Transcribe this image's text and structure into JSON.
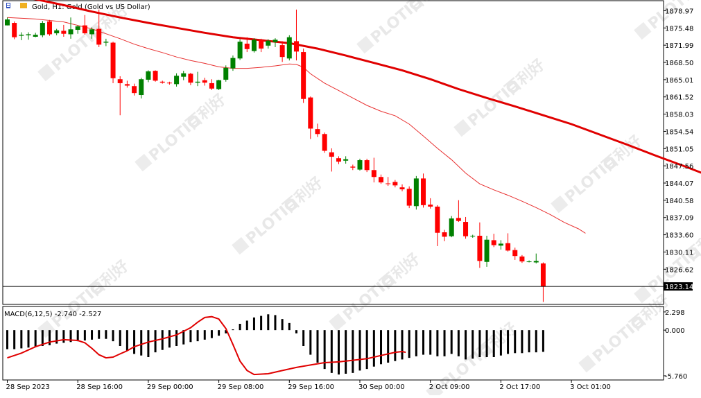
{
  "header": {
    "title": "Gold, H1:  Gold (Gold vs US Dollar)"
  },
  "watermark": {
    "brand": "PLOTIO",
    "cjk": "百利好"
  },
  "colors": {
    "bull": "#008000",
    "bear": "#ff0000",
    "ma_slow": "#e00000",
    "ma_fast": "#e83030",
    "macd_hist": "#000000",
    "macd_signal": "#e00000",
    "grid": "#000000"
  },
  "chart_data": [
    {
      "type": "candlestick",
      "symbol": "Gold",
      "timeframe": "H1",
      "ylim": [
        1819.5,
        1881.0
      ],
      "y_ticks": [
        "1878.97",
        "1875.48",
        "1871.99",
        "1868.50",
        "1865.01",
        "1861.52",
        "1858.03",
        "1854.54",
        "1851.05",
        "1847.56",
        "1844.07",
        "1840.58",
        "1837.09",
        "1833.60",
        "1830.11",
        "1826.62"
      ],
      "current_price": "1823.14",
      "x_labels": [
        "28 Sep 2023",
        "28 Sep 16:00",
        "29 Sep 00:00",
        "29 Sep 08:00",
        "29 Sep 16:00",
        "30 Sep 00:00",
        "2 Oct 09:00",
        "2 Oct 17:00",
        "3 Oct 01:00"
      ],
      "x_label_bars": [
        0,
        8,
        16,
        24,
        32,
        40,
        48,
        56,
        64
      ],
      "candles": [
        {
          "o": 1876.0,
          "h": 1877.6,
          "l": 1876.0,
          "c": 1877.2
        },
        {
          "o": 1876.5,
          "h": 1876.8,
          "l": 1873.2,
          "c": 1873.6
        },
        {
          "o": 1873.9,
          "h": 1874.6,
          "l": 1873.0,
          "c": 1874.1
        },
        {
          "o": 1874.0,
          "h": 1874.6,
          "l": 1873.1,
          "c": 1874.2
        },
        {
          "o": 1873.7,
          "h": 1874.5,
          "l": 1873.6,
          "c": 1874.1
        },
        {
          "o": 1874.0,
          "h": 1876.9,
          "l": 1873.6,
          "c": 1876.5
        },
        {
          "o": 1876.8,
          "h": 1877.1,
          "l": 1873.9,
          "c": 1874.2
        },
        {
          "o": 1874.4,
          "h": 1875.3,
          "l": 1874.0,
          "c": 1875.0
        },
        {
          "o": 1874.9,
          "h": 1876.1,
          "l": 1873.7,
          "c": 1874.3
        },
        {
          "o": 1874.2,
          "h": 1877.6,
          "l": 1873.3,
          "c": 1875.2
        },
        {
          "o": 1875.1,
          "h": 1876.0,
          "l": 1874.3,
          "c": 1875.8
        },
        {
          "o": 1876.0,
          "h": 1878.1,
          "l": 1874.1,
          "c": 1874.4
        },
        {
          "o": 1874.2,
          "h": 1875.6,
          "l": 1873.3,
          "c": 1875.2
        },
        {
          "o": 1875.3,
          "h": 1879.2,
          "l": 1871.6,
          "c": 1872.1
        },
        {
          "o": 1872.5,
          "h": 1873.3,
          "l": 1871.8,
          "c": 1872.7
        },
        {
          "o": 1872.5,
          "h": 1872.7,
          "l": 1864.3,
          "c": 1865.3
        },
        {
          "o": 1865.1,
          "h": 1865.7,
          "l": 1857.8,
          "c": 1864.3
        },
        {
          "o": 1864.1,
          "h": 1864.8,
          "l": 1863.4,
          "c": 1863.8
        },
        {
          "o": 1863.7,
          "h": 1864.2,
          "l": 1861.8,
          "c": 1862.3
        },
        {
          "o": 1861.9,
          "h": 1865.4,
          "l": 1861.2,
          "c": 1865.1
        },
        {
          "o": 1865.0,
          "h": 1866.9,
          "l": 1864.5,
          "c": 1866.7
        },
        {
          "o": 1866.8,
          "h": 1866.9,
          "l": 1864.6,
          "c": 1864.8
        },
        {
          "o": 1864.6,
          "h": 1864.8,
          "l": 1864.2,
          "c": 1864.4
        },
        {
          "o": 1864.4,
          "h": 1864.6,
          "l": 1864.0,
          "c": 1864.3
        },
        {
          "o": 1864.1,
          "h": 1866.3,
          "l": 1863.6,
          "c": 1865.8
        },
        {
          "o": 1865.6,
          "h": 1866.8,
          "l": 1864.9,
          "c": 1866.3
        },
        {
          "o": 1866.2,
          "h": 1866.4,
          "l": 1863.9,
          "c": 1864.4
        },
        {
          "o": 1864.4,
          "h": 1866.6,
          "l": 1863.7,
          "c": 1864.6
        },
        {
          "o": 1864.9,
          "h": 1865.4,
          "l": 1863.8,
          "c": 1864.4
        },
        {
          "o": 1864.3,
          "h": 1865.1,
          "l": 1862.9,
          "c": 1863.2
        },
        {
          "o": 1863.1,
          "h": 1865.0,
          "l": 1862.9,
          "c": 1864.9
        },
        {
          "o": 1865.0,
          "h": 1867.9,
          "l": 1864.6,
          "c": 1867.4
        },
        {
          "o": 1867.3,
          "h": 1869.9,
          "l": 1866.8,
          "c": 1869.4
        },
        {
          "o": 1869.3,
          "h": 1873.2,
          "l": 1869.0,
          "c": 1872.7
        },
        {
          "o": 1872.3,
          "h": 1873.6,
          "l": 1870.6,
          "c": 1871.2
        },
        {
          "o": 1870.8,
          "h": 1873.4,
          "l": 1870.5,
          "c": 1873.1
        },
        {
          "o": 1873.0,
          "h": 1873.3,
          "l": 1870.6,
          "c": 1871.3
        },
        {
          "o": 1871.9,
          "h": 1873.2,
          "l": 1871.3,
          "c": 1872.9
        },
        {
          "o": 1872.6,
          "h": 1873.4,
          "l": 1871.6,
          "c": 1873.1
        },
        {
          "o": 1872.0,
          "h": 1872.8,
          "l": 1868.6,
          "c": 1869.6
        },
        {
          "o": 1869.3,
          "h": 1874.0,
          "l": 1868.9,
          "c": 1873.6
        },
        {
          "o": 1872.8,
          "h": 1879.2,
          "l": 1868.9,
          "c": 1870.7
        },
        {
          "o": 1870.6,
          "h": 1871.3,
          "l": 1860.3,
          "c": 1861.1
        },
        {
          "o": 1861.4,
          "h": 1861.6,
          "l": 1853.0,
          "c": 1855.1
        },
        {
          "o": 1855.0,
          "h": 1856.1,
          "l": 1853.4,
          "c": 1854.0
        },
        {
          "o": 1854.0,
          "h": 1854.3,
          "l": 1850.2,
          "c": 1850.6
        },
        {
          "o": 1850.3,
          "h": 1851.1,
          "l": 1846.4,
          "c": 1849.4
        },
        {
          "o": 1849.1,
          "h": 1849.5,
          "l": 1847.9,
          "c": 1848.4
        },
        {
          "o": 1848.6,
          "h": 1849.5,
          "l": 1848.0,
          "c": 1848.9
        },
        {
          "o": 1847.4,
          "h": 1847.8,
          "l": 1846.7,
          "c": 1847.2
        },
        {
          "o": 1846.8,
          "h": 1849.0,
          "l": 1846.6,
          "c": 1848.7
        },
        {
          "o": 1848.7,
          "h": 1849.0,
          "l": 1846.3,
          "c": 1846.7
        },
        {
          "o": 1846.7,
          "h": 1849.2,
          "l": 1844.2,
          "c": 1845.3
        },
        {
          "o": 1845.3,
          "h": 1845.8,
          "l": 1843.9,
          "c": 1844.2
        },
        {
          "o": 1844.0,
          "h": 1845.3,
          "l": 1843.5,
          "c": 1843.9
        },
        {
          "o": 1844.3,
          "h": 1844.7,
          "l": 1843.2,
          "c": 1843.6
        },
        {
          "o": 1843.2,
          "h": 1843.8,
          "l": 1842.4,
          "c": 1842.8
        },
        {
          "o": 1842.9,
          "h": 1843.4,
          "l": 1839.0,
          "c": 1839.5
        },
        {
          "o": 1839.4,
          "h": 1845.5,
          "l": 1838.7,
          "c": 1845.0
        },
        {
          "o": 1845.0,
          "h": 1846.0,
          "l": 1839.1,
          "c": 1839.6
        },
        {
          "o": 1839.7,
          "h": 1841.0,
          "l": 1838.9,
          "c": 1839.3
        },
        {
          "o": 1839.3,
          "h": 1839.6,
          "l": 1831.3,
          "c": 1834.0
        },
        {
          "o": 1834.1,
          "h": 1834.6,
          "l": 1832.3,
          "c": 1833.2
        },
        {
          "o": 1833.3,
          "h": 1837.4,
          "l": 1833.1,
          "c": 1836.9
        },
        {
          "o": 1837.0,
          "h": 1840.6,
          "l": 1836.2,
          "c": 1836.4
        },
        {
          "o": 1836.2,
          "h": 1837.2,
          "l": 1832.8,
          "c": 1833.3
        },
        {
          "o": 1833.3,
          "h": 1833.6,
          "l": 1833.0,
          "c": 1833.4
        },
        {
          "o": 1833.4,
          "h": 1836.1,
          "l": 1826.9,
          "c": 1828.3
        },
        {
          "o": 1828.1,
          "h": 1833.4,
          "l": 1827.1,
          "c": 1832.6
        },
        {
          "o": 1832.5,
          "h": 1833.8,
          "l": 1831.1,
          "c": 1831.5
        },
        {
          "o": 1831.4,
          "h": 1832.5,
          "l": 1830.6,
          "c": 1831.8
        },
        {
          "o": 1831.9,
          "h": 1833.9,
          "l": 1830.2,
          "c": 1830.4
        },
        {
          "o": 1830.5,
          "h": 1831.0,
          "l": 1828.5,
          "c": 1829.3
        },
        {
          "o": 1829.2,
          "h": 1829.5,
          "l": 1827.9,
          "c": 1828.2
        },
        {
          "o": 1828.1,
          "h": 1828.4,
          "l": 1828.0,
          "c": 1828.2
        },
        {
          "o": 1828.0,
          "h": 1829.8,
          "l": 1827.8,
          "c": 1828.3
        },
        {
          "o": 1827.8,
          "h": 1828.0,
          "l": 1820.0,
          "c": 1823.14
        }
      ],
      "ma_fast": {
        "color": "#e83030",
        "points": [
          [
            0,
            1877.6
          ],
          [
            4,
            1877.3
          ],
          [
            8,
            1876.7
          ],
          [
            10,
            1876.0
          ],
          [
            12,
            1875.3
          ],
          [
            14,
            1874.3
          ],
          [
            16,
            1873.3
          ],
          [
            18,
            1872.2
          ],
          [
            20,
            1871.3
          ],
          [
            22,
            1870.5
          ],
          [
            24,
            1869.6
          ],
          [
            26,
            1868.9
          ],
          [
            28,
            1868.3
          ],
          [
            30,
            1867.6
          ],
          [
            32,
            1867.3
          ],
          [
            34,
            1867.3
          ],
          [
            36,
            1867.5
          ],
          [
            38,
            1867.8
          ],
          [
            40,
            1868.2
          ],
          [
            41,
            1868.1
          ],
          [
            42,
            1867.5
          ],
          [
            43,
            1866.2
          ],
          [
            45,
            1864.3
          ],
          [
            47,
            1862.8
          ],
          [
            49,
            1861.3
          ],
          [
            51,
            1859.8
          ],
          [
            53,
            1858.6
          ],
          [
            55,
            1857.7
          ],
          [
            57,
            1856.0
          ],
          [
            59,
            1853.6
          ],
          [
            61,
            1851.1
          ],
          [
            63,
            1848.8
          ],
          [
            65,
            1846.1
          ],
          [
            67,
            1843.9
          ],
          [
            69,
            1842.7
          ],
          [
            71,
            1841.6
          ],
          [
            73,
            1840.4
          ],
          [
            75,
            1839.1
          ],
          [
            77,
            1837.7
          ],
          [
            79,
            1836.1
          ],
          [
            81,
            1834.8
          ],
          [
            82,
            1833.9
          ]
        ]
      },
      "ma_slow": {
        "color": "#e00000",
        "points": [
          [
            0,
            1882.0
          ],
          [
            4,
            1881.3
          ],
          [
            8,
            1880.1
          ],
          [
            12,
            1878.8
          ],
          [
            16,
            1877.6
          ],
          [
            20,
            1876.5
          ],
          [
            24,
            1875.5
          ],
          [
            28,
            1874.5
          ],
          [
            32,
            1873.6
          ],
          [
            36,
            1873.0
          ],
          [
            40,
            1872.4
          ],
          [
            44,
            1871.3
          ],
          [
            48,
            1869.9
          ],
          [
            52,
            1868.4
          ],
          [
            56,
            1866.9
          ],
          [
            60,
            1865.1
          ],
          [
            64,
            1863.1
          ],
          [
            68,
            1861.3
          ],
          [
            72,
            1859.6
          ],
          [
            76,
            1857.8
          ],
          [
            80,
            1856.0
          ],
          [
            84,
            1853.9
          ],
          [
            88,
            1851.8
          ],
          [
            92,
            1849.6
          ],
          [
            96,
            1847.5
          ],
          [
            100,
            1845.3
          ],
          [
            103,
            1844.0
          ]
        ]
      }
    },
    {
      "type": "macd",
      "label": "MACD(6,12,5) -2.740 -2.527",
      "params": [
        6,
        12,
        5
      ],
      "main_value": -2.74,
      "signal_value": -2.527,
      "ylim": [
        -6.2,
        2.9
      ],
      "y_ticks": [
        "2.298",
        "0.000",
        "-5.760"
      ],
      "histogram": [
        -2.4,
        -2.4,
        -2.3,
        -2.2,
        -2.1,
        -2.0,
        -1.9,
        -1.7,
        -1.6,
        -1.5,
        -1.4,
        -1.3,
        -1.2,
        -1.1,
        -1.1,
        -1.4,
        -2.0,
        -2.6,
        -3.0,
        -3.2,
        -3.4,
        -2.8,
        -2.5,
        -2.2,
        -2.0,
        -1.8,
        -1.5,
        -1.4,
        -1.2,
        -1.0,
        -0.7,
        -0.4,
        0.1,
        0.8,
        1.2,
        1.6,
        1.8,
        2.0,
        1.9,
        1.4,
        0.9,
        -0.4,
        -2.0,
        -3.1,
        -4.1,
        -4.9,
        -5.4,
        -5.6,
        -5.5,
        -5.4,
        -5.1,
        -4.9,
        -4.6,
        -4.3,
        -4.1,
        -3.9,
        -3.7,
        -3.5,
        -3.3,
        -3.1,
        -3.1,
        -3.3,
        -3.3,
        -3.0,
        -3.3,
        -3.7,
        -3.6,
        -3.4,
        -3.4,
        -3.4,
        -3.2,
        -3.0,
        -2.9,
        -2.9,
        -2.8,
        -2.8,
        -2.74
      ],
      "signal": {
        "points": [
          [
            0,
            -3.5
          ],
          [
            4,
            -2.9
          ],
          [
            8,
            -2.1
          ],
          [
            12,
            -1.5
          ],
          [
            16,
            -1.2
          ],
          [
            20,
            -1.3
          ],
          [
            22,
            -1.6
          ],
          [
            24,
            -2.3
          ],
          [
            26,
            -3.1
          ],
          [
            28,
            -3.5
          ],
          [
            30,
            -3.4
          ],
          [
            32,
            -3.0
          ],
          [
            34,
            -2.6
          ],
          [
            36,
            -2.1
          ],
          [
            38,
            -1.8
          ],
          [
            40,
            -1.5
          ],
          [
            44,
            -1.1
          ],
          [
            48,
            -0.6
          ],
          [
            52,
            0.3
          ],
          [
            54,
            1.0
          ],
          [
            56,
            1.6
          ],
          [
            58,
            1.7
          ],
          [
            60,
            1.4
          ],
          [
            62,
            0.2
          ],
          [
            64,
            -1.8
          ],
          [
            66,
            -3.9
          ],
          [
            68,
            -5.1
          ],
          [
            70,
            -5.6
          ],
          [
            74,
            -5.5
          ],
          [
            78,
            -5.1
          ],
          [
            82,
            -4.7
          ],
          [
            86,
            -4.4
          ],
          [
            90,
            -4.1
          ],
          [
            94,
            -4.0
          ],
          [
            98,
            -3.8
          ],
          [
            102,
            -3.6
          ],
          [
            104,
            -3.4
          ],
          [
            106,
            -3.2
          ],
          [
            108,
            -3.0
          ],
          [
            110,
            -2.8
          ],
          [
            112,
            -2.7
          ],
          [
            113,
            -2.8
          ]
        ]
      }
    }
  ]
}
